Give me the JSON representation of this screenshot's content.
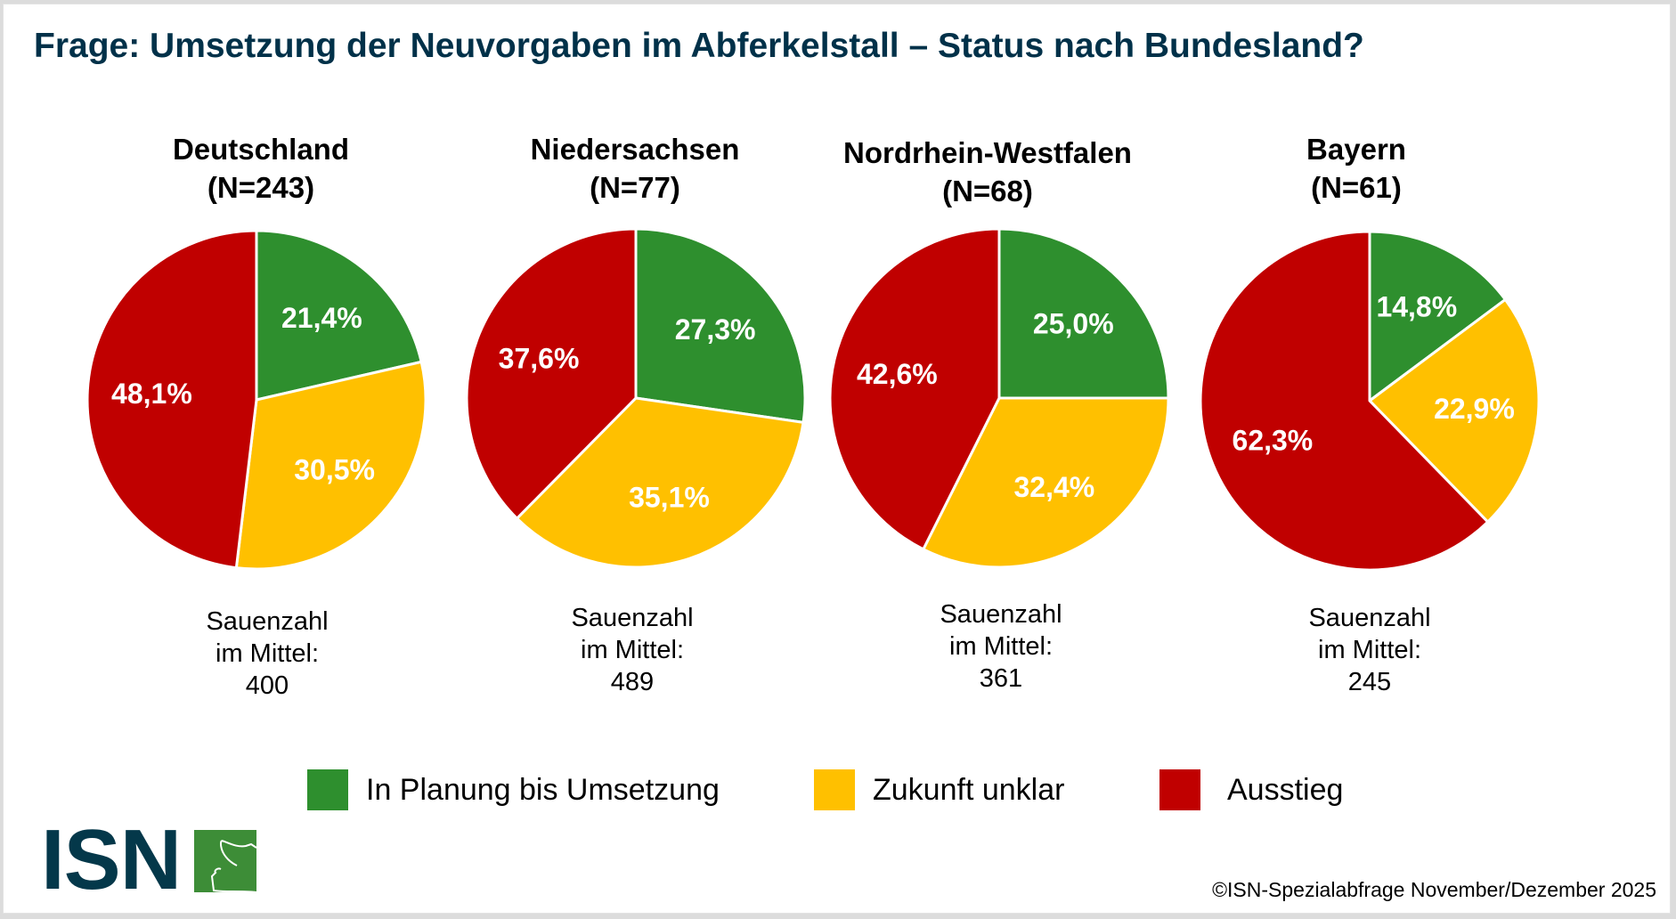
{
  "title": "Frage: Umsetzung der Neuvorgaben im Abferkelstall – Status nach Bundesland?",
  "colors": {
    "planung": "#2e8f2e",
    "unklar": "#ffc000",
    "ausstieg": "#c00000",
    "title": "#003149"
  },
  "legend": [
    {
      "label": "In Planung bis Umsetzung",
      "color": "#2e8f2e"
    },
    {
      "label": "Zukunft unklar",
      "color": "#ffc000"
    },
    {
      "label": "Ausstieg",
      "color": "#c00000"
    }
  ],
  "pies": [
    {
      "name": "Deutschland",
      "n_label": "(N=243)",
      "sub_line1": "Sauenzahl",
      "sub_line2": "im Mittel:",
      "sub_value": "400"
    },
    {
      "name": "Niedersachsen",
      "n_label": "(N=77)",
      "sub_line1": "Sauenzahl",
      "sub_line2": "im Mittel:",
      "sub_value": "489"
    },
    {
      "name": "Nordrhein-Westfalen",
      "n_label": "(N=68)",
      "sub_line1": "Sauenzahl",
      "sub_line2": "im Mittel:",
      "sub_value": "361"
    },
    {
      "name": "Bayern",
      "n_label": "(N=61)",
      "sub_line1": "Sauenzahl",
      "sub_line2": "im Mittel:",
      "sub_value": "245"
    }
  ],
  "logo": {
    "text": "ISN"
  },
  "footer": "©ISN-Spezialabfrage November/Dezember 2025",
  "chart_data": [
    {
      "type": "pie",
      "title": "Deutschland (N=243)",
      "categories": [
        "In Planung bis Umsetzung",
        "Zukunft unklar",
        "Ausstieg"
      ],
      "values": [
        21.4,
        30.5,
        48.1
      ],
      "labels": [
        "21,4%",
        "30,5%",
        "48,1%"
      ],
      "annotation": "Sauenzahl im Mittel: 400",
      "start_angle": "12 o'clock",
      "direction": "clockwise"
    },
    {
      "type": "pie",
      "title": "Niedersachsen (N=77)",
      "categories": [
        "In Planung bis Umsetzung",
        "Zukunft unklar",
        "Ausstieg"
      ],
      "values": [
        27.3,
        35.1,
        37.6
      ],
      "labels": [
        "27,3%",
        "35,1%",
        "37,6%"
      ],
      "annotation": "Sauenzahl im Mittel: 489",
      "start_angle": "12 o'clock",
      "direction": "clockwise"
    },
    {
      "type": "pie",
      "title": "Nordrhein-Westfalen (N=68)",
      "categories": [
        "In Planung bis Umsetzung",
        "Zukunft unklar",
        "Ausstieg"
      ],
      "values": [
        25.0,
        32.4,
        42.6
      ],
      "labels": [
        "25,0%",
        "32,4%",
        "42,6%"
      ],
      "annotation": "Sauenzahl im Mittel: 361",
      "start_angle": "12 o'clock",
      "direction": "clockwise"
    },
    {
      "type": "pie",
      "title": "Bayern (N=61)",
      "categories": [
        "In Planung bis Umsetzung",
        "Zukunft unklar",
        "Ausstieg"
      ],
      "values": [
        14.8,
        22.9,
        62.3
      ],
      "labels": [
        "14,8%",
        "22,9%",
        "62,3%"
      ],
      "annotation": "Sauenzahl im Mittel: 245",
      "start_angle": "12 o'clock",
      "direction": "clockwise"
    }
  ]
}
